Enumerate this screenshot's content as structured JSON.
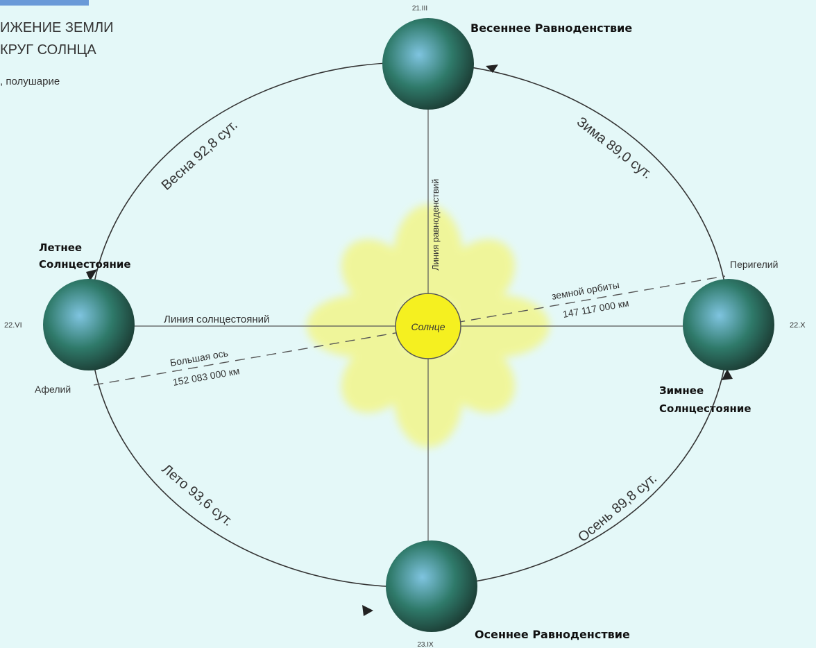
{
  "header": {
    "title_lines": [
      "ИЖЕНИЕ ЗЕМЛИ",
      "КРУГ СОЛНЦА"
    ],
    "subtitle": ", полушарие"
  },
  "spring_equinox": {
    "date": "21.III",
    "label": "Весеннее Равноденствие"
  },
  "summer_solstice": {
    "date": "22.VI",
    "label_lines": [
      "Летнее",
      "Солнцестояние"
    ]
  },
  "winter_solstice": {
    "date": "22.X",
    "label_lines": [
      "Зимнее",
      "Солнцестояние"
    ]
  },
  "autumn_equinox": {
    "date": "23.IX",
    "label": "Осеннее Равноденствие"
  },
  "seasons": {
    "spring": "Весна 92,8 сут.",
    "winter": "Зима 89,0 сут.",
    "summer": "Лето 93,6 сут.",
    "autumn": "Осень 89,8 сут."
  },
  "sun": "Солнце",
  "equinox_line": "Линия равноденствий",
  "solstice_line": "Линия солнцестояний",
  "major_axis": {
    "label": "Большая ось",
    "aphelion_distance": "152 083 000 км",
    "orbit_label": "земной орбиты",
    "perihelion_distance": "147 117 000 км"
  },
  "aphelion": "Афелий",
  "perihelion": "Перигелий"
}
